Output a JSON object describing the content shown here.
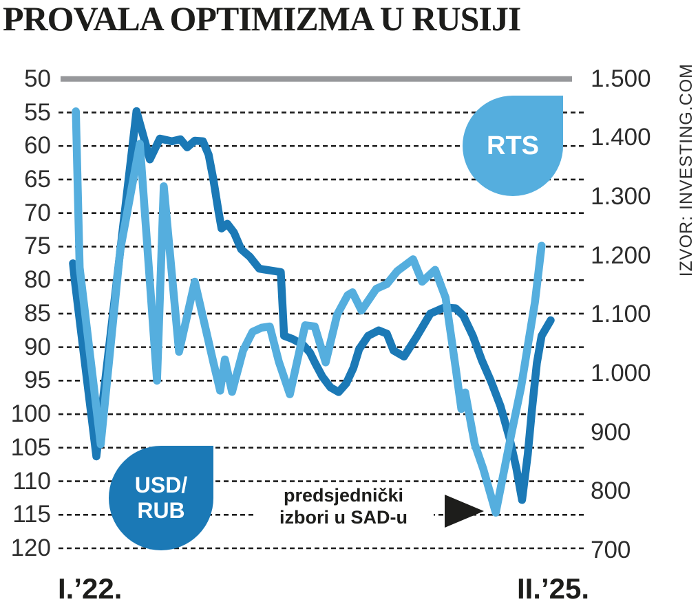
{
  "title": "PROVALA OPTIMIZMA U RUSIJI",
  "source": "IZVOR: INVESTING.COM",
  "x_axis": {
    "start_label": "I.’22.",
    "end_label": "II.’25."
  },
  "labels": {
    "rts_bubble": "RTS",
    "usdrub_bubble_line1": "USD/",
    "usdrub_bubble_line2": "RUB"
  },
  "annotation": {
    "line1": "predsjednički",
    "line2": "izbori u SAD-u",
    "arrow": "right-triangle-icon",
    "points_at": "market trough at US presidential election, late 2024"
  },
  "colors": {
    "usdrub_line": "#1b79b6",
    "rts_line": "#55aede",
    "top_rule_gray": "#97989b",
    "gridline": "#1c1c1c",
    "text_black": "#1d1d1b",
    "axis_text": "#2d2d2d"
  },
  "chart_data": {
    "type": "line",
    "title": "PROVALA OPTIMIZMA U RUSIJI",
    "x_range": {
      "start": "I.'22. (Jan 2022)",
      "end": "II.'25. (Feb 2025)",
      "x_encoding": "fraction of timeline 0–1"
    },
    "grid": "horizontal dashed lines at left-axis ticks; solid gray rule at top (50 / 1.500)",
    "left_axis": {
      "series": "USD/RUB",
      "min": 50,
      "max": 120,
      "step": 5,
      "orientation": "inverted (50 at top, 120 at bottom)",
      "tick_labels": [
        "50",
        "55",
        "60",
        "65",
        "70",
        "75",
        "80",
        "85",
        "90",
        "95",
        "100",
        "105",
        "110",
        "115",
        "120"
      ]
    },
    "right_axis": {
      "series": "RTS",
      "min": 700,
      "max": 1500,
      "step": 100,
      "orientation": "1.500 at top, 700 at bottom",
      "tick_labels": [
        "1.500",
        "1.400",
        "1.300",
        "1.200",
        "1.100",
        "1.000",
        "900",
        "800",
        "700"
      ]
    },
    "legend": [
      {
        "label": "USD/RUB",
        "color": "#1b79b6",
        "style": "dark-blue teardrop badge"
      },
      {
        "label": "RTS",
        "color": "#55aede",
        "style": "light-blue teardrop badge"
      }
    ],
    "series": [
      {
        "name": "USD/RUB",
        "axis": "left",
        "color": "#1b79b6",
        "points": [
          [
            0.0,
            77.5
          ],
          [
            0.004,
            80.2
          ],
          [
            0.049,
            106.3
          ],
          [
            0.133,
            54.8
          ],
          [
            0.161,
            62.0
          ],
          [
            0.182,
            58.9
          ],
          [
            0.207,
            59.3
          ],
          [
            0.225,
            59.0
          ],
          [
            0.239,
            60.2
          ],
          [
            0.255,
            59.2
          ],
          [
            0.272,
            59.3
          ],
          [
            0.284,
            61.3
          ],
          [
            0.294,
            65.0
          ],
          [
            0.304,
            69.5
          ],
          [
            0.311,
            72.3
          ],
          [
            0.323,
            71.6
          ],
          [
            0.337,
            72.9
          ],
          [
            0.352,
            75.4
          ],
          [
            0.37,
            76.5
          ],
          [
            0.39,
            78.3
          ],
          [
            0.435,
            78.8
          ],
          [
            0.442,
            88.3
          ],
          [
            0.46,
            88.8
          ],
          [
            0.481,
            89.6
          ],
          [
            0.496,
            90.8
          ],
          [
            0.507,
            92.4
          ],
          [
            0.522,
            94.4
          ],
          [
            0.539,
            96.0
          ],
          [
            0.556,
            96.7
          ],
          [
            0.572,
            95.4
          ],
          [
            0.587,
            93.1
          ],
          [
            0.599,
            90.3
          ],
          [
            0.618,
            88.3
          ],
          [
            0.64,
            87.5
          ],
          [
            0.657,
            88.0
          ],
          [
            0.671,
            90.5
          ],
          [
            0.693,
            91.4
          ],
          [
            0.719,
            88.5
          ],
          [
            0.748,
            85.0
          ],
          [
            0.777,
            84.1
          ],
          [
            0.801,
            84.2
          ],
          [
            0.817,
            85.3
          ],
          [
            0.837,
            88.3
          ],
          [
            0.856,
            92.0
          ],
          [
            0.875,
            95.1
          ],
          [
            0.895,
            98.8
          ],
          [
            0.914,
            103.6
          ],
          [
            0.928,
            108.0
          ],
          [
            0.94,
            112.8
          ],
          [
            0.952,
            106.0
          ],
          [
            0.961,
            99.2
          ],
          [
            0.971,
            92.4
          ],
          [
            0.981,
            88.3
          ],
          [
            1.0,
            86.0
          ]
        ]
      },
      {
        "name": "RTS",
        "axis": "right",
        "color": "#55aede",
        "points": [
          [
            0.006,
            1445
          ],
          [
            0.014,
            1180
          ],
          [
            0.058,
            880
          ],
          [
            0.099,
            1210
          ],
          [
            0.14,
            1390
          ],
          [
            0.176,
            988
          ],
          [
            0.19,
            1318
          ],
          [
            0.222,
            1037
          ],
          [
            0.255,
            1156
          ],
          [
            0.294,
            1019
          ],
          [
            0.308,
            971
          ],
          [
            0.318,
            1024
          ],
          [
            0.333,
            969
          ],
          [
            0.356,
            1039
          ],
          [
            0.376,
            1071
          ],
          [
            0.395,
            1078
          ],
          [
            0.412,
            1080
          ],
          [
            0.431,
            1020
          ],
          [
            0.454,
            965
          ],
          [
            0.486,
            1082
          ],
          [
            0.506,
            1080
          ],
          [
            0.529,
            1019
          ],
          [
            0.553,
            1100
          ],
          [
            0.575,
            1133
          ],
          [
            0.585,
            1138
          ],
          [
            0.604,
            1107
          ],
          [
            0.635,
            1144
          ],
          [
            0.657,
            1152
          ],
          [
            0.679,
            1174
          ],
          [
            0.712,
            1194
          ],
          [
            0.731,
            1156
          ],
          [
            0.758,
            1176
          ],
          [
            0.78,
            1129
          ],
          [
            0.801,
            1010
          ],
          [
            0.813,
            940
          ],
          [
            0.821,
            968
          ],
          [
            0.841,
            880
          ],
          [
            0.859,
            838
          ],
          [
            0.885,
            764
          ],
          [
            0.918,
            899
          ],
          [
            0.938,
            977
          ],
          [
            0.952,
            1047
          ],
          [
            0.967,
            1121
          ],
          [
            0.981,
            1217
          ]
        ]
      }
    ]
  }
}
